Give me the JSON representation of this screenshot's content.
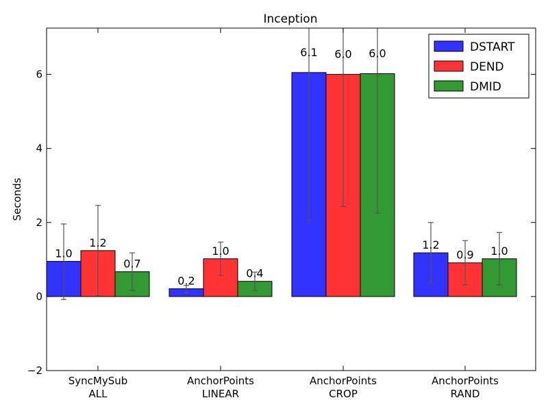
{
  "chart_data": {
    "type": "bar",
    "title": "Inception",
    "xlabel": "",
    "ylabel": "Seconds",
    "ylim": [
      -2,
      7.25
    ],
    "yticks": [
      -2,
      0,
      2,
      4,
      6
    ],
    "ytick_labels": [
      "−2",
      "0",
      "2",
      "4",
      "6"
    ],
    "grid": false,
    "legend_position": "top-right",
    "categories": [
      [
        "SyncMySub",
        "ALL"
      ],
      [
        "AnchorPoints",
        "LINEAR"
      ],
      [
        "AnchorPoints",
        "CROP"
      ],
      [
        "AnchorPoints",
        "RAND"
      ]
    ],
    "series": [
      {
        "name": "DSTART",
        "color": "#3333ff",
        "values": [
          0.95,
          0.21,
          6.05,
          1.18
        ],
        "labels": [
          "1.0",
          "0.2",
          "6.1",
          "1.2"
        ],
        "err_low": [
          -0.08,
          0.1,
          2.05,
          0.37
        ],
        "err_high": [
          1.96,
          0.3,
          7.6,
          2.0
        ]
      },
      {
        "name": "DEND",
        "color": "#ff3333",
        "values": [
          1.24,
          1.02,
          6.0,
          0.91
        ],
        "labels": [
          "1.2",
          "1.0",
          "6.0",
          "0.9"
        ],
        "err_low": [
          0.02,
          0.57,
          2.43,
          0.31
        ],
        "err_high": [
          2.46,
          1.47,
          7.6,
          1.51
        ]
      },
      {
        "name": "DMID",
        "color": "#339933",
        "values": [
          0.67,
          0.41,
          6.02,
          1.02
        ],
        "labels": [
          "0.7",
          "0.4",
          "6.0",
          "1.0"
        ],
        "err_low": [
          0.16,
          0.16,
          2.25,
          0.31
        ],
        "err_high": [
          1.18,
          0.66,
          7.6,
          1.73
        ]
      }
    ]
  }
}
